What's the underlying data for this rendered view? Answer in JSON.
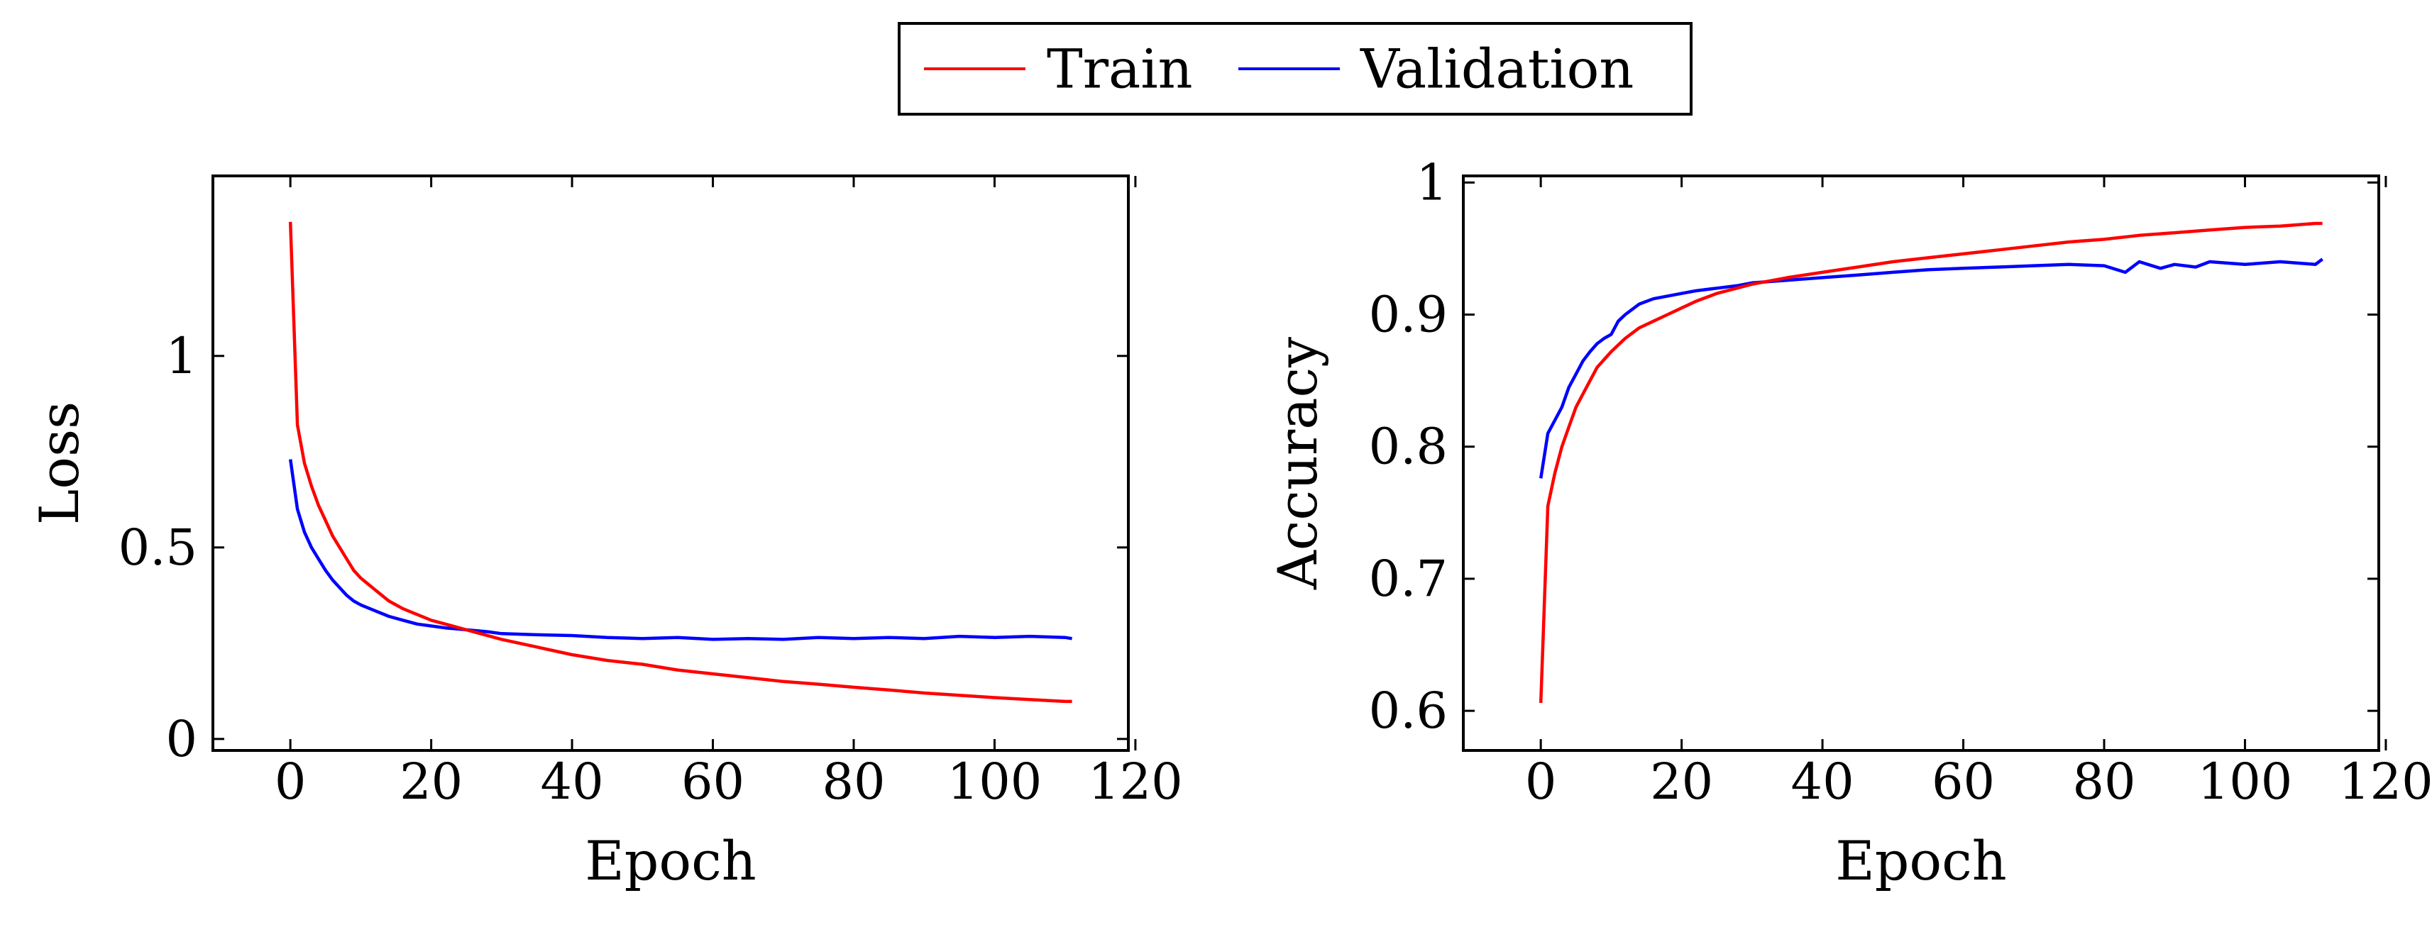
{
  "legend": {
    "entries": [
      {
        "label": "Train",
        "color": "#ff0000"
      },
      {
        "label": "Validation",
        "color": "#0000ff"
      }
    ]
  },
  "chart_data": [
    {
      "type": "line",
      "id": "loss",
      "xlabel": "Epoch",
      "ylabel": "Loss",
      "xlim": [
        -11,
        119
      ],
      "ylim": [
        -0.03,
        1.47
      ],
      "xticks": [
        0,
        20,
        40,
        60,
        80,
        100,
        120
      ],
      "yticks": [
        0,
        0.5,
        1
      ],
      "series": [
        {
          "name": "Train",
          "color": "#ff0000",
          "x": [
            0,
            1,
            2,
            3,
            4,
            5,
            6,
            7,
            8,
            9,
            10,
            12,
            14,
            16,
            18,
            20,
            22,
            25,
            30,
            35,
            40,
            45,
            50,
            55,
            60,
            65,
            70,
            75,
            80,
            85,
            90,
            95,
            100,
            105,
            110,
            111
          ],
          "y": [
            1.35,
            0.82,
            0.72,
            0.66,
            0.61,
            0.57,
            0.53,
            0.5,
            0.47,
            0.44,
            0.42,
            0.39,
            0.36,
            0.34,
            0.325,
            0.31,
            0.3,
            0.285,
            0.26,
            0.24,
            0.22,
            0.205,
            0.195,
            0.18,
            0.17,
            0.16,
            0.15,
            0.143,
            0.135,
            0.128,
            0.12,
            0.114,
            0.108,
            0.103,
            0.098,
            0.098
          ]
        },
        {
          "name": "Validation",
          "color": "#0000ff",
          "x": [
            0,
            1,
            2,
            3,
            4,
            5,
            6,
            7,
            8,
            9,
            10,
            12,
            14,
            16,
            18,
            20,
            22,
            25,
            28,
            30,
            35,
            40,
            45,
            50,
            55,
            60,
            65,
            70,
            75,
            80,
            85,
            90,
            95,
            100,
            105,
            110,
            111
          ],
          "y": [
            0.73,
            0.6,
            0.54,
            0.5,
            0.47,
            0.44,
            0.415,
            0.395,
            0.375,
            0.36,
            0.35,
            0.335,
            0.32,
            0.31,
            0.3,
            0.295,
            0.29,
            0.285,
            0.28,
            0.275,
            0.272,
            0.27,
            0.265,
            0.262,
            0.265,
            0.26,
            0.262,
            0.26,
            0.265,
            0.262,
            0.265,
            0.262,
            0.268,
            0.265,
            0.268,
            0.265,
            0.262
          ]
        }
      ]
    },
    {
      "type": "line",
      "id": "accuracy",
      "xlabel": "Epoch",
      "ylabel": "Accuracy",
      "xlim": [
        -11,
        119
      ],
      "ylim": [
        0.57,
        1.005
      ],
      "xticks": [
        0,
        20,
        40,
        60,
        80,
        100,
        120
      ],
      "yticks": [
        0.6,
        0.7,
        0.8,
        0.9,
        1
      ],
      "series": [
        {
          "name": "Train",
          "color": "#ff0000",
          "x": [
            0,
            1,
            2,
            3,
            4,
            5,
            6,
            7,
            8,
            9,
            10,
            12,
            14,
            16,
            18,
            20,
            22,
            25,
            30,
            35,
            40,
            45,
            50,
            55,
            60,
            65,
            70,
            75,
            80,
            85,
            90,
            95,
            100,
            105,
            110,
            111
          ],
          "y": [
            0.606,
            0.755,
            0.78,
            0.8,
            0.815,
            0.83,
            0.84,
            0.85,
            0.86,
            0.866,
            0.872,
            0.882,
            0.89,
            0.895,
            0.9,
            0.905,
            0.91,
            0.916,
            0.923,
            0.928,
            0.932,
            0.936,
            0.94,
            0.943,
            0.946,
            0.949,
            0.952,
            0.955,
            0.957,
            0.96,
            0.962,
            0.964,
            0.966,
            0.967,
            0.969,
            0.969
          ]
        },
        {
          "name": "Validation",
          "color": "#0000ff",
          "x": [
            0,
            1,
            2,
            3,
            4,
            5,
            6,
            7,
            8,
            9,
            10,
            11,
            12,
            14,
            16,
            18,
            20,
            22,
            25,
            28,
            30,
            35,
            40,
            45,
            50,
            55,
            60,
            65,
            70,
            75,
            80,
            83,
            85,
            88,
            90,
            93,
            95,
            100,
            105,
            110,
            111
          ],
          "y": [
            0.776,
            0.81,
            0.82,
            0.83,
            0.845,
            0.855,
            0.865,
            0.872,
            0.878,
            0.882,
            0.885,
            0.895,
            0.9,
            0.908,
            0.912,
            0.914,
            0.916,
            0.918,
            0.92,
            0.922,
            0.924,
            0.926,
            0.928,
            0.93,
            0.932,
            0.934,
            0.935,
            0.936,
            0.937,
            0.938,
            0.937,
            0.932,
            0.94,
            0.935,
            0.938,
            0.936,
            0.94,
            0.938,
            0.94,
            0.938,
            0.942
          ]
        }
      ]
    }
  ]
}
